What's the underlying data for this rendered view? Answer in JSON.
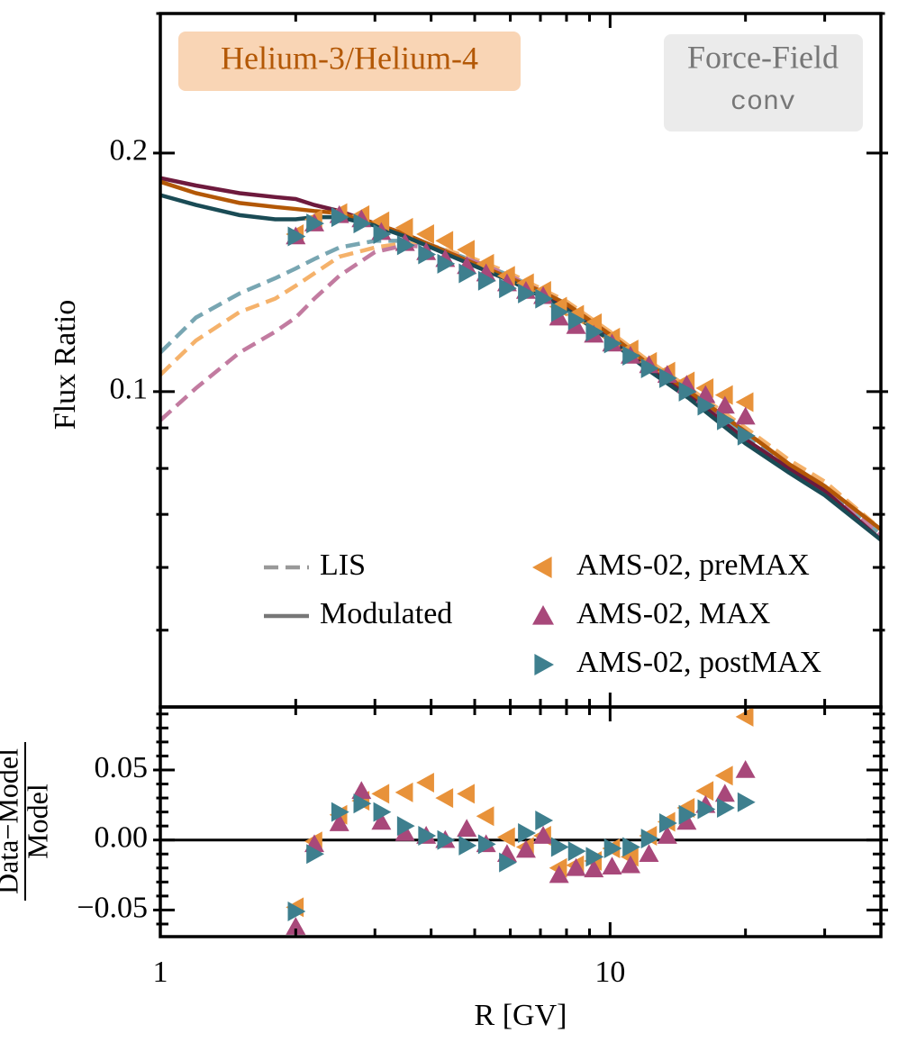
{
  "chart_data": [
    {
      "type": "line",
      "title": "Helium-3/Helium-4",
      "model_label": "Force-Field",
      "model_tag": "conv",
      "ylabel": "Flux Ratio",
      "xscale": "log",
      "yscale": "log",
      "xlim": [
        1,
        40
      ],
      "ylim": [
        0.04,
        0.3
      ],
      "xticks": [
        1,
        10
      ],
      "xminor": [
        2,
        3,
        4,
        5,
        6,
        7,
        8,
        9,
        20,
        30,
        40
      ],
      "yticks": [
        0.1,
        0.2
      ],
      "yminor": [
        0.05,
        0.06,
        0.07,
        0.08,
        0.09,
        0.3
      ],
      "legend_styles": [
        {
          "name": "LIS",
          "style": "dashed",
          "color": "#999999"
        },
        {
          "name": "Modulated",
          "style": "solid",
          "color": "#777777"
        }
      ],
      "x": [
        1,
        1.2,
        1.5,
        1.8,
        2.0,
        2.2,
        2.5,
        3,
        3.5,
        4,
        5,
        6,
        7,
        8,
        10,
        12,
        15,
        20,
        25,
        30,
        40
      ],
      "lines": [
        {
          "style": "dashed",
          "color": "#78a6b2",
          "values": [
            0.112,
            0.124,
            0.133,
            0.139,
            0.143,
            0.147,
            0.152,
            0.155,
            0.155,
            0.153,
            0.146,
            0.14,
            0.134,
            0.129,
            0.118,
            0.109,
            0.1,
            0.088,
            0.081,
            0.075,
            0.066
          ]
        },
        {
          "style": "dashed",
          "color": "#f5b26b",
          "values": [
            0.105,
            0.116,
            0.126,
            0.131,
            0.136,
            0.141,
            0.148,
            0.152,
            0.154,
            0.153,
            0.147,
            0.141,
            0.135,
            0.13,
            0.119,
            0.11,
            0.101,
            0.09,
            0.082,
            0.077,
            0.067
          ]
        },
        {
          "style": "dashed",
          "color": "#c27ba0",
          "values": [
            0.092,
            0.101,
            0.112,
            0.119,
            0.124,
            0.131,
            0.14,
            0.15,
            0.153,
            0.152,
            0.146,
            0.14,
            0.134,
            0.129,
            0.118,
            0.109,
            0.1,
            0.089,
            0.081,
            0.076,
            0.066
          ]
        },
        {
          "style": "solid",
          "color": "#6e1a3d",
          "values": [
            0.186,
            0.182,
            0.178,
            0.176,
            0.175,
            0.172,
            0.169,
            0.163,
            0.158,
            0.153,
            0.145,
            0.139,
            0.133,
            0.128,
            0.117,
            0.108,
            0.099,
            0.087,
            0.08,
            0.075,
            0.065
          ]
        },
        {
          "style": "solid",
          "color": "#b35806",
          "values": [
            0.184,
            0.178,
            0.173,
            0.171,
            0.17,
            0.169,
            0.168,
            0.163,
            0.158,
            0.153,
            0.145,
            0.139,
            0.134,
            0.129,
            0.118,
            0.109,
            0.1,
            0.089,
            0.081,
            0.076,
            0.067
          ]
        },
        {
          "style": "solid",
          "color": "#1a4b55",
          "values": [
            0.177,
            0.172,
            0.167,
            0.165,
            0.165,
            0.166,
            0.166,
            0.162,
            0.157,
            0.152,
            0.144,
            0.138,
            0.132,
            0.127,
            0.116,
            0.107,
            0.098,
            0.086,
            0.079,
            0.074,
            0.065
          ]
        }
      ],
      "series": [
        {
          "name": "AMS-02, preMAX",
          "color": "#e8923a",
          "marker": "left",
          "x": [
            2.0,
            2.2,
            2.5,
            2.8,
            3.1,
            3.5,
            3.9,
            4.3,
            4.8,
            5.3,
            5.9,
            6.5,
            7.1,
            7.7,
            8.4,
            9.2,
            10.1,
            11.1,
            12.2,
            13.4,
            14.8,
            16.3,
            18.0,
            20.0
          ],
          "values": [
            0.158,
            0.165,
            0.168,
            0.167,
            0.164,
            0.161,
            0.158,
            0.155,
            0.151,
            0.145,
            0.14,
            0.137,
            0.134,
            0.128,
            0.125,
            0.122,
            0.117,
            0.113,
            0.109,
            0.106,
            0.103,
            0.101,
            0.099,
            0.097
          ]
        },
        {
          "name": "AMS-02, MAX",
          "color": "#a8487a",
          "marker": "up",
          "x": [
            2.0,
            2.2,
            2.5,
            2.8,
            3.1,
            3.5,
            3.9,
            4.3,
            4.8,
            5.3,
            5.9,
            6.5,
            7.1,
            7.7,
            8.4,
            9.2,
            10.1,
            11.1,
            12.2,
            13.4,
            14.8,
            16.3,
            18.0,
            20.0
          ],
          "values": [
            0.157,
            0.163,
            0.167,
            0.165,
            0.159,
            0.154,
            0.15,
            0.147,
            0.144,
            0.141,
            0.137,
            0.134,
            0.132,
            0.124,
            0.121,
            0.118,
            0.115,
            0.111,
            0.108,
            0.105,
            0.102,
            0.099,
            0.096,
            0.093
          ]
        },
        {
          "name": "AMS-02, postMAX",
          "color": "#3e7f8e",
          "marker": "right",
          "x": [
            2.0,
            2.2,
            2.5,
            2.8,
            3.1,
            3.5,
            3.9,
            4.3,
            4.8,
            5.3,
            5.9,
            6.5,
            7.1,
            7.7,
            8.4,
            9.2,
            10.1,
            11.1,
            12.2,
            13.4,
            14.8,
            16.3,
            18.0,
            20.0
          ],
          "values": [
            0.157,
            0.163,
            0.166,
            0.163,
            0.158,
            0.153,
            0.149,
            0.145,
            0.141,
            0.138,
            0.135,
            0.133,
            0.131,
            0.126,
            0.123,
            0.119,
            0.115,
            0.111,
            0.107,
            0.104,
            0.1,
            0.096,
            0.092,
            0.088
          ]
        }
      ]
    },
    {
      "type": "scatter",
      "ylabel_numerator": "Data−Model",
      "ylabel_denominator": "Model",
      "xlabel": "R [GV]",
      "xscale": "log",
      "xlim": [
        1,
        40
      ],
      "ylim": [
        -0.069,
        0.095
      ],
      "xticks": [
        1,
        10
      ],
      "xminor": [
        2,
        3,
        4,
        5,
        6,
        7,
        8,
        9,
        20,
        30,
        40
      ],
      "yticks": [
        {
          "value": -0.05,
          "label": "−0.05"
        },
        {
          "value": 0,
          "label": "0.00"
        },
        0.05
      ],
      "yminor": [
        -0.06,
        -0.04,
        -0.03,
        -0.02,
        -0.01,
        0.01,
        0.02,
        0.03,
        0.04,
        0.06,
        0.07,
        0.08,
        0.09
      ],
      "hline": 0,
      "series": [
        {
          "color": "#e8923a",
          "marker": "left",
          "x": [
            2.0,
            2.2,
            2.5,
            2.8,
            3.1,
            3.5,
            3.9,
            4.3,
            4.8,
            5.3,
            5.9,
            6.5,
            7.1,
            7.7,
            8.4,
            9.2,
            10.1,
            11.1,
            12.2,
            13.4,
            14.8,
            16.3,
            18.0,
            20.0
          ],
          "values": [
            -0.048,
            -0.001,
            0.018,
            0.028,
            0.033,
            0.034,
            0.041,
            0.03,
            0.033,
            0.017,
            0.002,
            -0.005,
            0.003,
            -0.02,
            -0.018,
            -0.015,
            -0.006,
            -0.012,
            0.003,
            0.013,
            0.023,
            0.035,
            0.046,
            0.088
          ]
        },
        {
          "color": "#a8487a",
          "marker": "up",
          "x": [
            2.0,
            2.2,
            2.5,
            2.8,
            3.1,
            3.5,
            3.9,
            4.3,
            4.8,
            5.3,
            5.9,
            6.5,
            7.1,
            7.7,
            8.4,
            9.2,
            10.1,
            11.1,
            12.2,
            13.4,
            14.8,
            16.3,
            18.0,
            20.0
          ],
          "values": [
            -0.062,
            -0.003,
            0.012,
            0.035,
            0.013,
            0.005,
            0.003,
            0.0,
            0.008,
            -0.003,
            -0.01,
            -0.007,
            0.003,
            -0.025,
            -0.02,
            -0.021,
            -0.019,
            -0.018,
            -0.01,
            0.003,
            0.013,
            0.025,
            0.033,
            0.05
          ]
        },
        {
          "color": "#3e7f8e",
          "marker": "right",
          "x": [
            2.0,
            2.2,
            2.5,
            2.8,
            3.1,
            3.5,
            3.9,
            4.3,
            4.8,
            5.3,
            5.9,
            6.5,
            7.1,
            7.7,
            8.4,
            9.2,
            10.1,
            11.1,
            12.2,
            13.4,
            14.8,
            16.3,
            18.0,
            20.0
          ],
          "values": [
            -0.051,
            -0.01,
            0.02,
            0.026,
            0.02,
            0.01,
            0.003,
            0.0,
            -0.004,
            -0.003,
            -0.016,
            0.005,
            0.014,
            -0.005,
            -0.008,
            -0.012,
            -0.006,
            -0.005,
            0.001,
            0.012,
            0.018,
            0.022,
            0.023,
            0.027
          ]
        }
      ]
    }
  ]
}
